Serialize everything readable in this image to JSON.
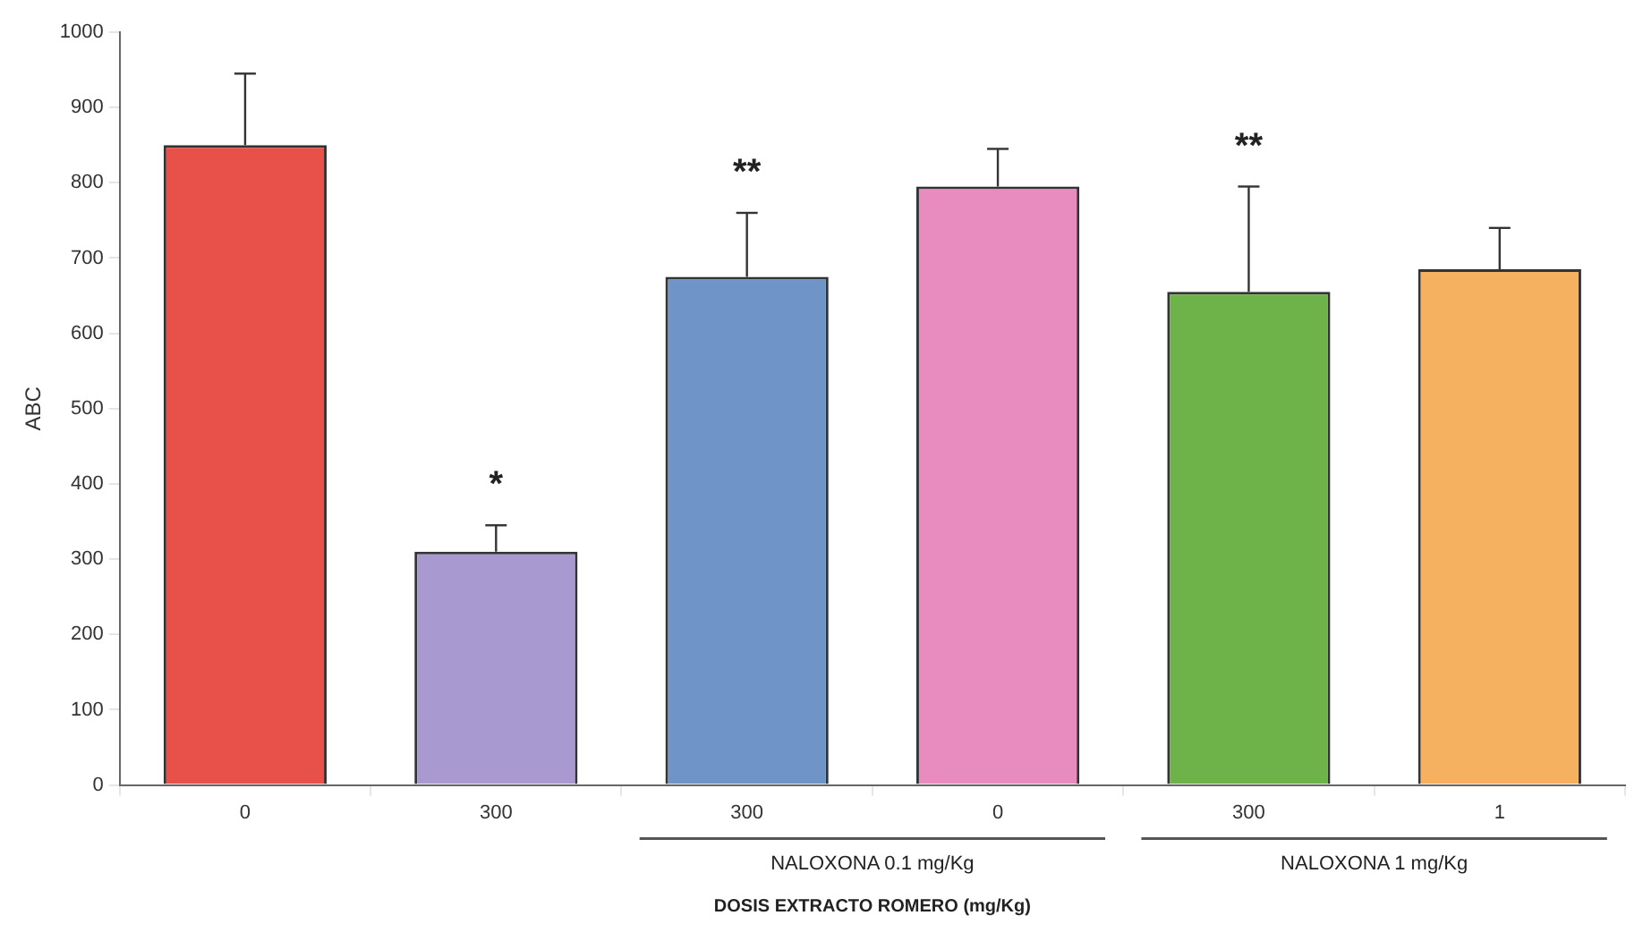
{
  "chart_data": {
    "type": "bar",
    "categories": [
      "0",
      "300",
      "300",
      "0",
      "300",
      "1"
    ],
    "values": [
      850,
      310,
      675,
      795,
      655,
      685
    ],
    "colors": [
      "#e8504a",
      "#a89ad0",
      "#6e94c8",
      "#e88cc0",
      "#6db34a",
      "#f5b060"
    ],
    "errors": [
      [
        850,
        945
      ],
      [
        310,
        345
      ],
      [
        675,
        760
      ],
      [
        795,
        845
      ],
      [
        655,
        795
      ],
      [
        685,
        740
      ]
    ],
    "ylim": [
      0,
      1000
    ],
    "yticks": [
      0,
      100,
      200,
      300,
      400,
      500,
      600,
      700,
      800,
      900,
      1000
    ],
    "ylabel": "ABC",
    "xlabel": "DOSIS EXTRACTO ROMERO (mg/Kg)",
    "annotations": [
      "*",
      "**",
      "**",
      "NALOXONA 0.1 mg/Kg",
      "NALOXONA 1 mg/Kg"
    ],
    "grid": false,
    "legend": false
  }
}
